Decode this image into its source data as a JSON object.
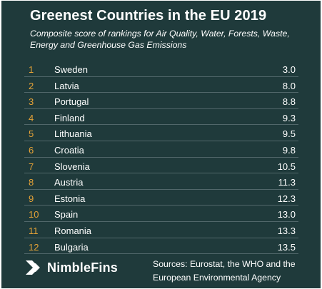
{
  "title": "Greenest Countries in the EU 2019",
  "subtitle": "Composite score of rankings for Air Quality, Water, Forests, Waste, Energy and Greenhouse Gas Emissions",
  "source_text": "Sources: Eurostat, the WHO and the European Environmental Agency",
  "brand": {
    "name": "NimbleFins",
    "logo_icon": "chevron-arrow-icon"
  },
  "colors": {
    "background": "#1f3a3b",
    "rank_accent": "#e4a237",
    "divider": "#51676a",
    "text": "#ffffff"
  },
  "chart_data": {
    "type": "table",
    "title": "Greenest Countries in the EU 2019",
    "subtitle": "Composite score of rankings for Air Quality, Water, Forests, Waste, Energy and Greenhouse Gas Emissions",
    "columns": [
      "",
      "",
      ""
    ],
    "rows": [
      {
        "rank": "1",
        "country": "Sweden",
        "score": "3.0"
      },
      {
        "rank": "2",
        "country": "Latvia",
        "score": "8.0"
      },
      {
        "rank": "3",
        "country": "Portugal",
        "score": "8.8"
      },
      {
        "rank": "4",
        "country": "Finland",
        "score": "9.3"
      },
      {
        "rank": "5",
        "country": "Lithuania",
        "score": "9.5"
      },
      {
        "rank": "6",
        "country": "Croatia",
        "score": "9.8"
      },
      {
        "rank": "7",
        "country": "Slovenia",
        "score": "10.5"
      },
      {
        "rank": "8",
        "country": "Austria",
        "score": "11.3"
      },
      {
        "rank": "9",
        "country": "Estonia",
        "score": "12.3"
      },
      {
        "rank": "10",
        "country": "Spain",
        "score": "13.0"
      },
      {
        "rank": "11",
        "country": "Romania",
        "score": "13.3"
      },
      {
        "rank": "12",
        "country": "Bulgaria",
        "score": "13.5"
      }
    ]
  }
}
